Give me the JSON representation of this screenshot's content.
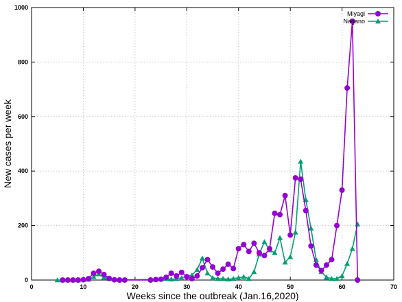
{
  "chart_data": {
    "type": "line",
    "xlabel": "Weeks since the outbreak (Jan.16,2020)",
    "ylabel": "New cases per week",
    "xlim": [
      0,
      70
    ],
    "ylim": [
      0,
      1000
    ],
    "xticks": [
      0,
      10,
      20,
      30,
      40,
      50,
      60,
      70
    ],
    "yticks": [
      0,
      200,
      400,
      600,
      800,
      1000
    ],
    "grid": true,
    "legend_position": "top-right",
    "series": [
      {
        "name": "Miyagi",
        "color": "#9400d3",
        "marker": "circle",
        "x": [
          6,
          7,
          8,
          9,
          10,
          11,
          12,
          13,
          14,
          15,
          16,
          17,
          18,
          23,
          24,
          25,
          26,
          27,
          28,
          29,
          30,
          31,
          32,
          33,
          34,
          35,
          36,
          37,
          38,
          39,
          40,
          41,
          42,
          43,
          44,
          45,
          46,
          47,
          48,
          49,
          50,
          51,
          52,
          53,
          54,
          55,
          56,
          57,
          58,
          59,
          60,
          61,
          62,
          63
        ],
        "y": [
          0,
          0,
          0,
          0,
          1,
          5,
          25,
          32,
          20,
          6,
          1,
          0,
          0,
          0,
          2,
          3,
          10,
          25,
          15,
          28,
          12,
          5,
          15,
          45,
          75,
          48,
          25,
          40,
          58,
          42,
          115,
          130,
          105,
          135,
          100,
          90,
          115,
          245,
          240,
          310,
          165,
          375,
          370,
          255,
          125,
          55,
          35,
          55,
          75,
          200,
          330,
          705,
          950,
          0
        ]
      },
      {
        "name": "Nagano",
        "color": "#009e73",
        "marker": "triangle",
        "x": [
          5,
          6,
          7,
          8,
          9,
          10,
          11,
          12,
          13,
          14,
          15,
          16,
          17,
          18,
          23,
          24,
          25,
          26,
          27,
          28,
          29,
          30,
          31,
          32,
          33,
          34,
          35,
          36,
          37,
          38,
          39,
          40,
          41,
          42,
          43,
          44,
          45,
          46,
          47,
          48,
          49,
          50,
          51,
          52,
          53,
          54,
          55,
          56,
          57,
          58,
          59,
          60,
          61,
          62,
          63
        ],
        "y": [
          0,
          0,
          0,
          0,
          0,
          2,
          2,
          12,
          22,
          10,
          5,
          2,
          2,
          1,
          2,
          2,
          3,
          5,
          3,
          5,
          8,
          15,
          18,
          38,
          80,
          25,
          8,
          5,
          5,
          3,
          5,
          8,
          12,
          5,
          30,
          95,
          140,
          110,
          100,
          155,
          65,
          85,
          175,
          435,
          295,
          190,
          75,
          30,
          10,
          5,
          5,
          15,
          60,
          115,
          205
        ]
      }
    ]
  }
}
